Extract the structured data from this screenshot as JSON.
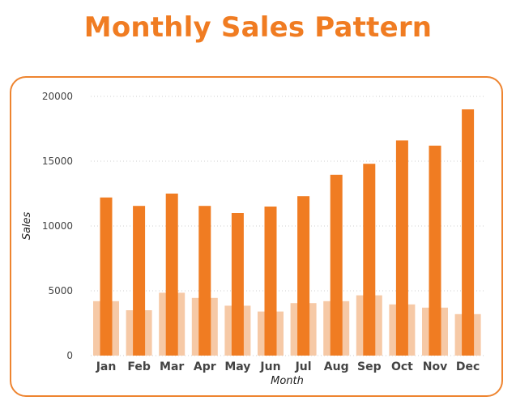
{
  "chart_data": {
    "type": "bar",
    "title": "Monthly Sales Pattern",
    "xlabel": "Month",
    "ylabel": "Sales",
    "ylim": [
      0,
      20000
    ],
    "yticks": [
      0,
      5000,
      10000,
      15000,
      20000
    ],
    "grid": true,
    "categories": [
      "Jan",
      "Feb",
      "Mar",
      "Apr",
      "May",
      "Jun",
      "Jul",
      "Aug",
      "Sep",
      "Oct",
      "Nov",
      "Dec"
    ],
    "series": [
      {
        "color": "#f6c9a6",
        "values": [
          4200,
          3500,
          4850,
          4450,
          3850,
          3400,
          4050,
          4200,
          4650,
          3950,
          3700,
          3200
        ]
      },
      {
        "color": "#f07c22",
        "values": [
          12200,
          11550,
          12500,
          11550,
          11000,
          11500,
          12300,
          13950,
          14800,
          16600,
          16200,
          19000
        ]
      }
    ]
  }
}
